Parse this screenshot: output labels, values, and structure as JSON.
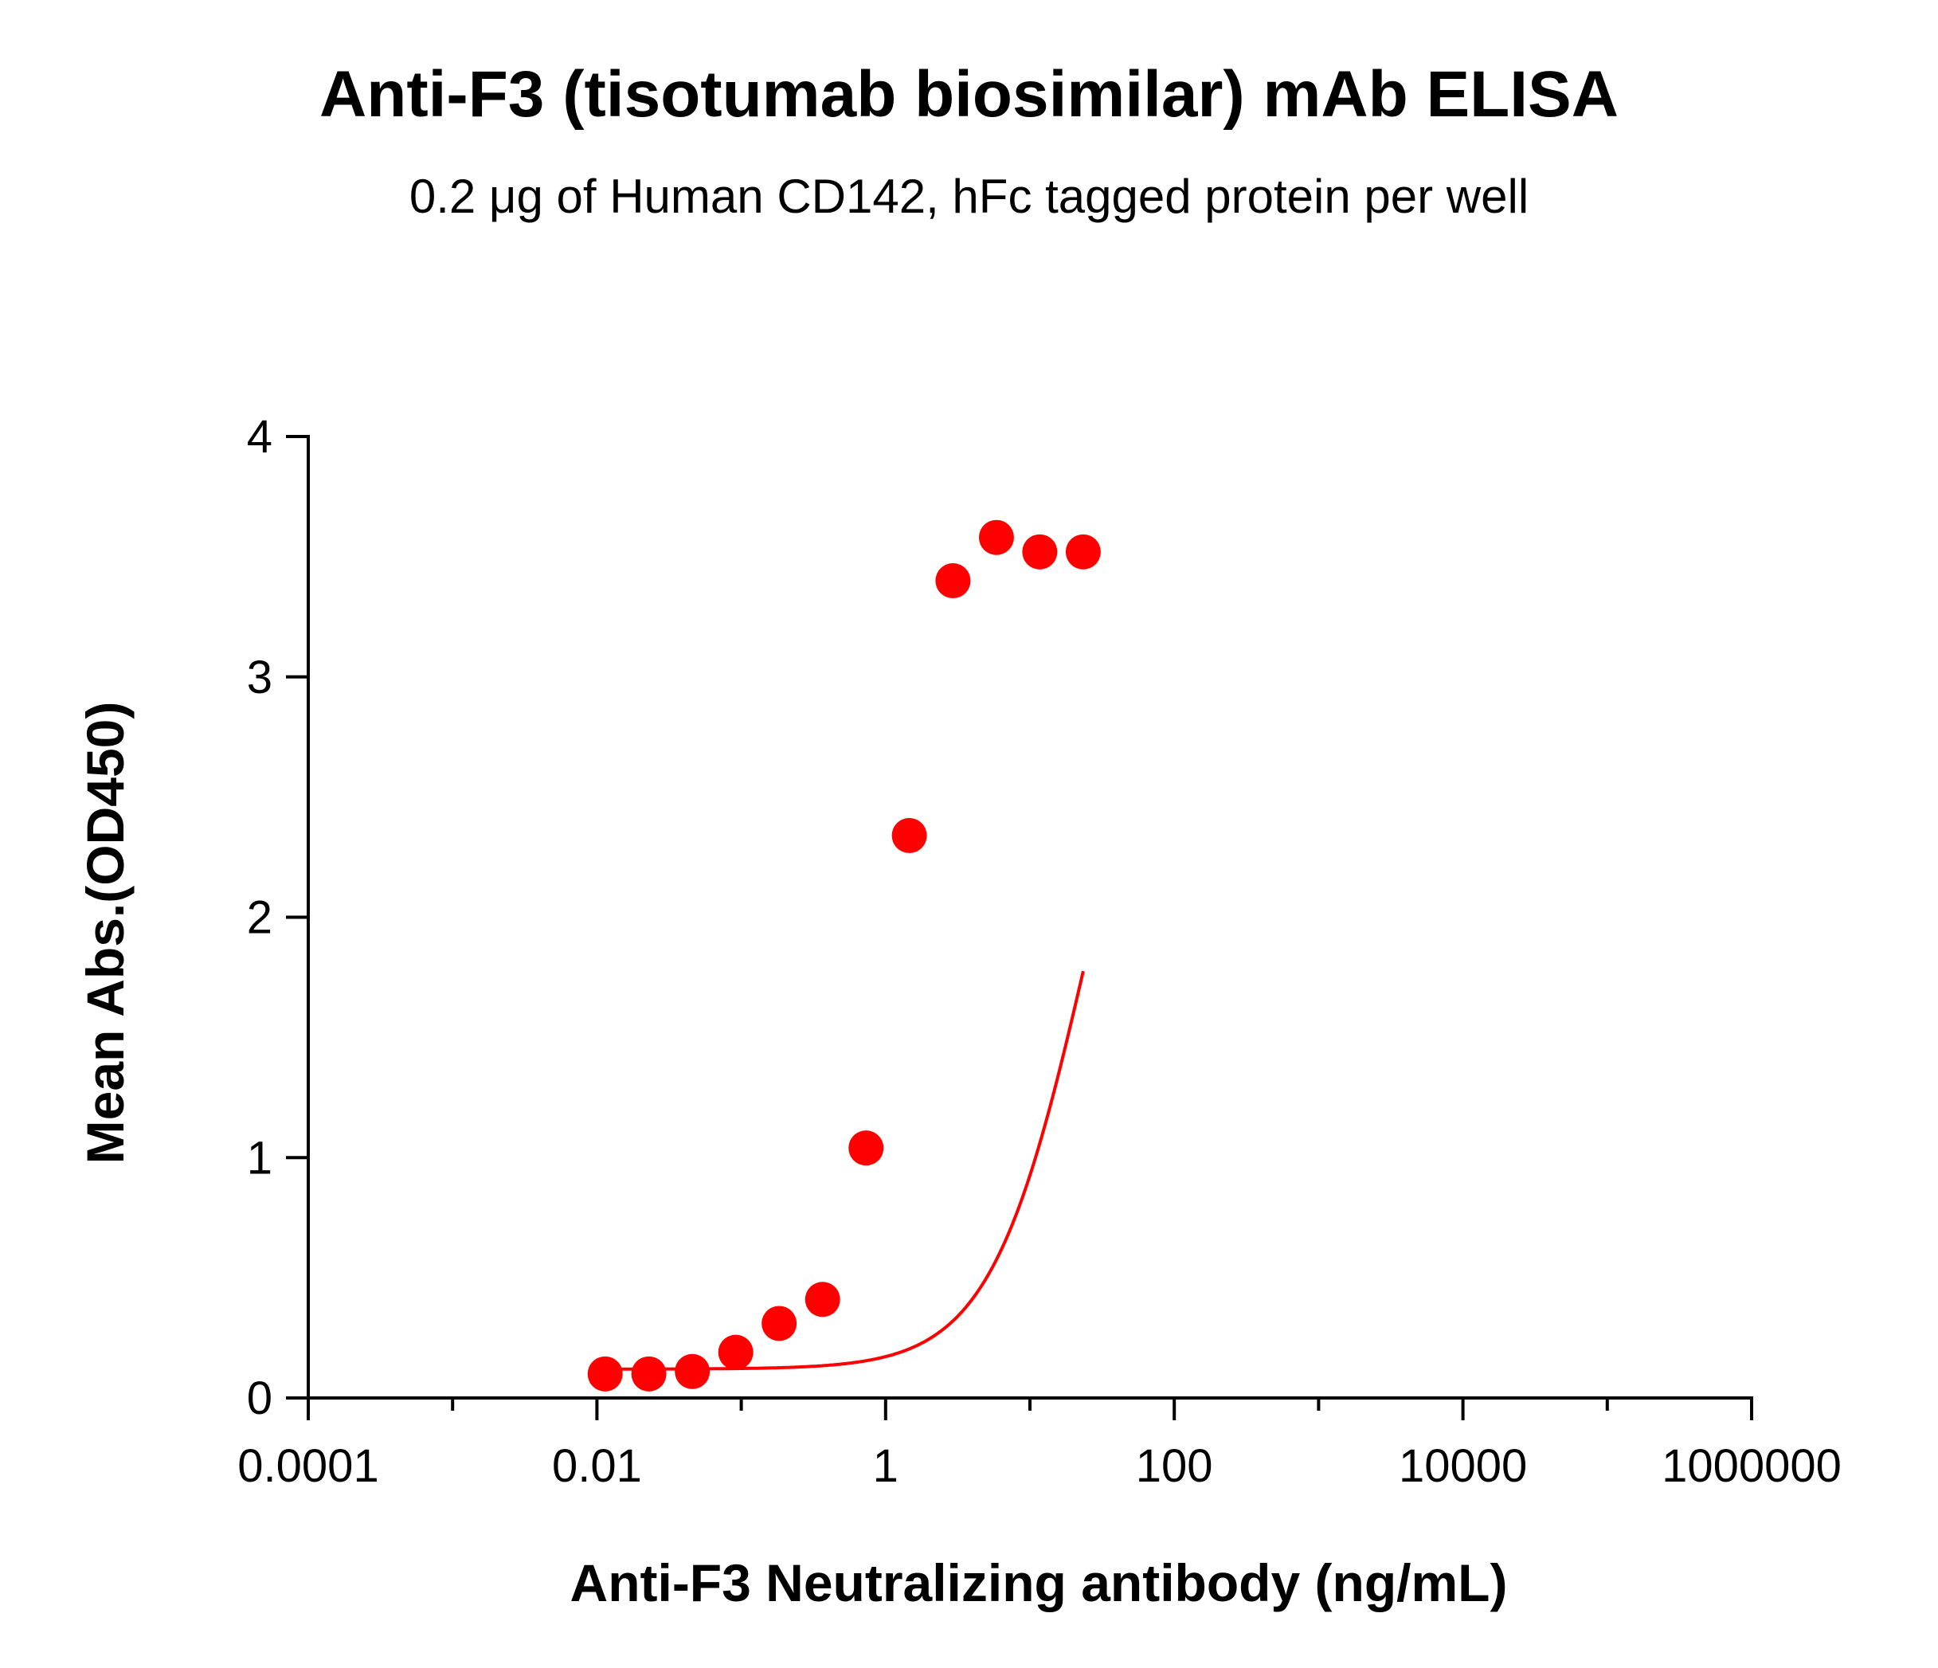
{
  "chart_data": {
    "type": "scatter",
    "title": "Anti-F3 (tisotumab biosimilar) mAb ELISA",
    "subtitle": "0.2 μg of Human CD142, hFc tagged protein per well",
    "xlabel": "Anti-F3 Neutralizing antibody (ng/mL)",
    "ylabel": "Mean Abs.(OD450)",
    "x_scale": "log10",
    "xlim": [
      0.0001,
      1000000
    ],
    "ylim": [
      0,
      4
    ],
    "x_ticks": [
      {
        "value": 0.0001,
        "label": "0.0001"
      },
      {
        "value": 0.01,
        "label": "0.01"
      },
      {
        "value": 1,
        "label": "1"
      },
      {
        "value": 100,
        "label": "100"
      },
      {
        "value": 10000,
        "label": "10000"
      },
      {
        "value": 1000000,
        "label": "1000000"
      }
    ],
    "y_ticks": [
      {
        "value": 0,
        "label": "0"
      },
      {
        "value": 1,
        "label": "1"
      },
      {
        "value": 2,
        "label": "2"
      },
      {
        "value": 3,
        "label": "3"
      },
      {
        "value": 4,
        "label": "4"
      }
    ],
    "grid": false,
    "legend": "none",
    "series": [
      {
        "color": "#ff0000",
        "points": [
          {
            "x": 0.0114,
            "y": 0.1
          },
          {
            "x": 0.0229,
            "y": 0.1
          },
          {
            "x": 0.0458,
            "y": 0.11
          },
          {
            "x": 0.0916,
            "y": 0.19
          },
          {
            "x": 0.183,
            "y": 0.31
          },
          {
            "x": 0.366,
            "y": 0.41
          },
          {
            "x": 0.732,
            "y": 1.04
          },
          {
            "x": 1.46,
            "y": 2.34
          },
          {
            "x": 2.93,
            "y": 3.4
          },
          {
            "x": 5.86,
            "y": 3.58
          },
          {
            "x": 11.7,
            "y": 3.52
          },
          {
            "x": 23.4,
            "y": 3.52
          }
        ],
        "fit": {
          "model": "4PL",
          "bottom": 0.12,
          "top": 3.58,
          "ec50": 25,
          "hill": 1.3
        }
      }
    ]
  }
}
